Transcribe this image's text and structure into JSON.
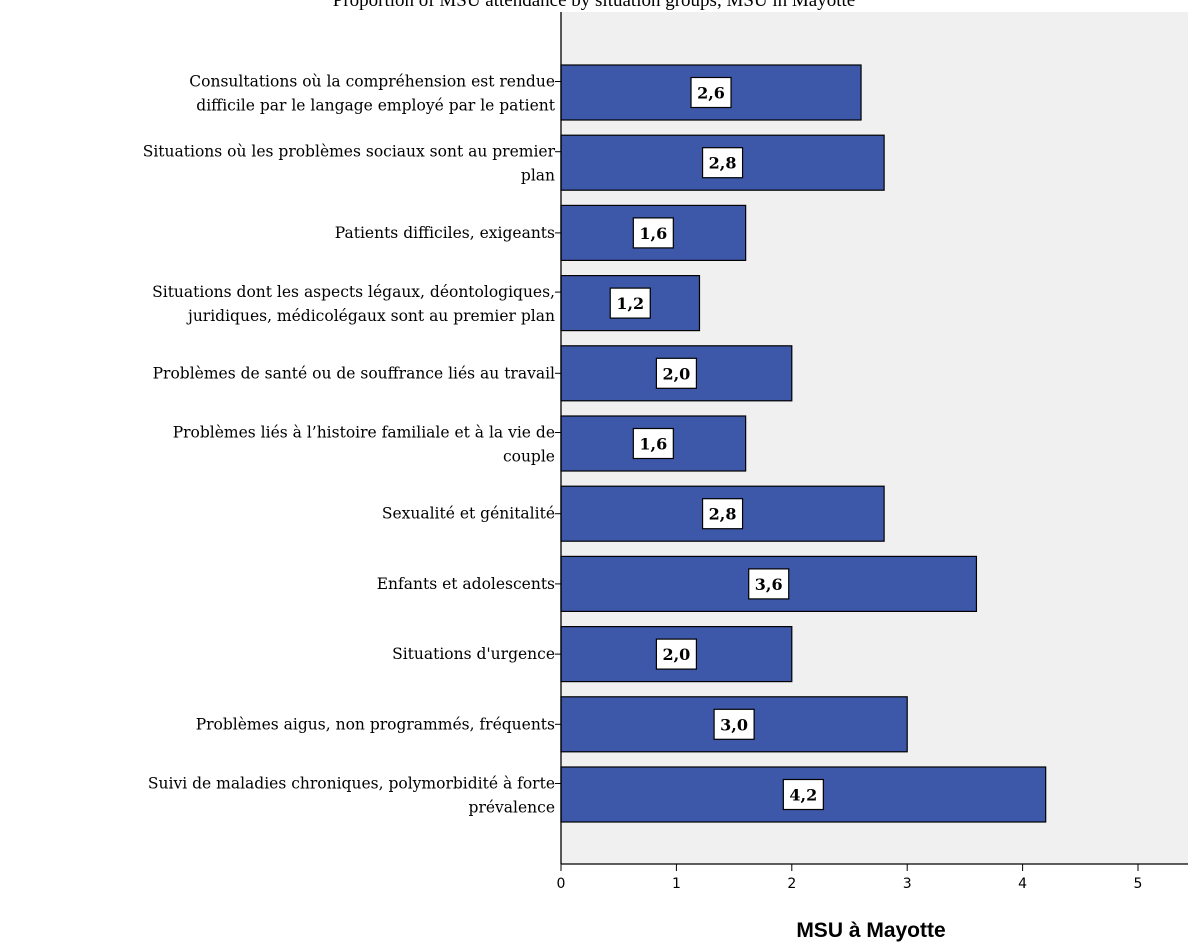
{
  "header": {
    "fragment": "Proportion of MSU attendance by situation groups, MSU in Mayotte"
  },
  "chart_data": {
    "type": "bar",
    "orientation": "horizontal",
    "xlabel": "MSU à Mayotte",
    "xlim": [
      0,
      5.5
    ],
    "xticks": [
      "0",
      "1",
      "2",
      "3",
      "4",
      "5"
    ],
    "tick_values": [
      0,
      1,
      2,
      3,
      4,
      5
    ],
    "grid": false,
    "bar_color": "#3d58a8",
    "plot_background": "#f0f0f0",
    "categories": [
      [
        "Consultations où la compréhension est rendue",
        "difficile par le langage employé par le patient"
      ],
      [
        "Situations où les problèmes sociaux sont au premier",
        "plan"
      ],
      [
        "Patients difficiles, exigeants"
      ],
      [
        "Situations dont les aspects légaux, déontologiques,",
        "juridiques, médicolégaux sont au premier plan"
      ],
      [
        "Problèmes de santé ou de souffrance liés au travail"
      ],
      [
        "Problèmes liés à l’histoire familiale et à la vie de",
        "couple"
      ],
      [
        "Sexualité et génitalité"
      ],
      [
        "Enfants et adolescents"
      ],
      [
        "Situations d'urgence"
      ],
      [
        "Problèmes aigus, non programmés, fréquents"
      ],
      [
        "Suivi de maladies chroniques, polymorbidité à forte",
        "prévalence"
      ]
    ],
    "values": [
      2.6,
      2.8,
      1.6,
      1.2,
      2.0,
      1.6,
      2.8,
      3.6,
      2.0,
      3.0,
      4.2
    ],
    "value_labels": [
      "2,6",
      "2,8",
      "1,6",
      "1,2",
      "2,0",
      "1,6",
      "2,8",
      "3,6",
      "2,0",
      "3,0",
      "4,2"
    ]
  }
}
